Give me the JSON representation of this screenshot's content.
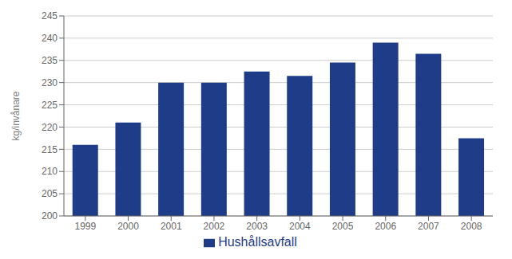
{
  "chart_data": {
    "type": "bar",
    "ylabel": "kg/invånare",
    "categories": [
      "1999",
      "2000",
      "2001",
      "2002",
      "2003",
      "2004",
      "2005",
      "2006",
      "2007",
      "2008"
    ],
    "series": [
      {
        "name": "Hushållsavfall",
        "color": "#1f3c88",
        "values": [
          216,
          221,
          230,
          230,
          232.5,
          231.5,
          234.5,
          239,
          236.5,
          217.5
        ]
      }
    ],
    "ylim": [
      200,
      245
    ],
    "yticks": [
      200,
      205,
      210,
      215,
      220,
      225,
      230,
      235,
      240,
      245
    ],
    "grid": true,
    "legend": "bottom"
  }
}
